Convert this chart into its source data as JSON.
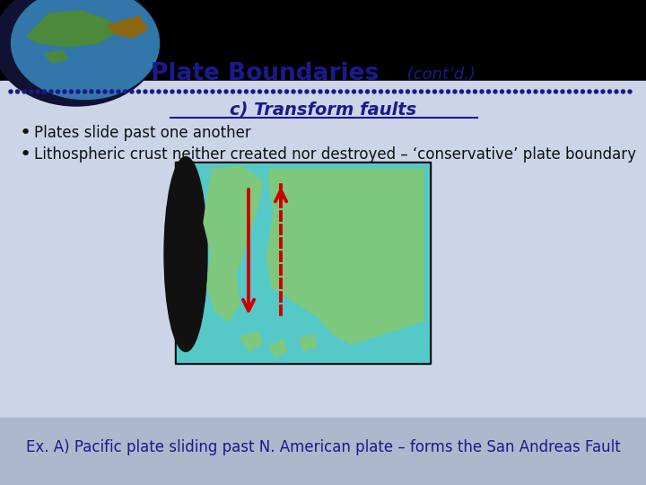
{
  "title_bold": "Plate Boundaries",
  "title_italic": " (cont’d.)",
  "subtitle": "c) Transform faults",
  "bullet1": "Plates slide past one another",
  "bullet2": "Lithospheric crust neither created nor destroyed – ‘conservative’ plate boundary",
  "footer": "Ex. A) Pacific plate sliding past N. American plate – forms the San Andreas Fault",
  "bg_top": "#000000",
  "bg_main": "#ccd5e8",
  "bg_bottom": "#adb8cc",
  "title_color": "#1a1a8c",
  "subtitle_color": "#1a1a8c",
  "bullet_color": "#111111",
  "footer_color": "#1a1a8c",
  "dot_color": "#1a1a8c",
  "map_ocean": "#55c8c8",
  "map_land": "#7dc87d",
  "arrow_color": "#cc0000"
}
